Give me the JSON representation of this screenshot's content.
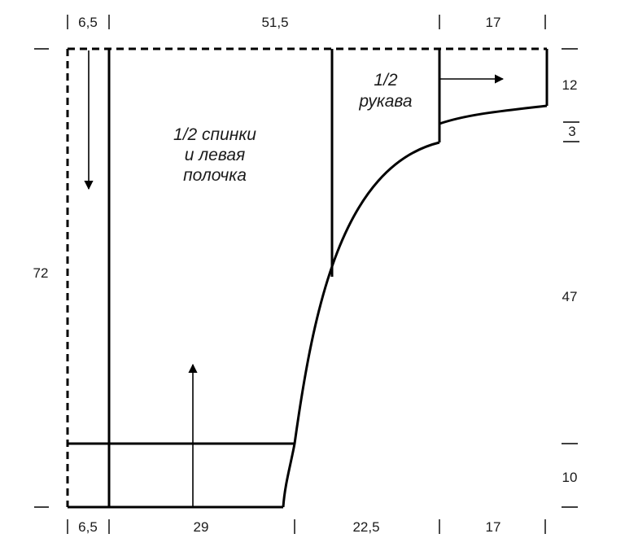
{
  "labels": {
    "body_line1": "1/2 спинки",
    "body_line2": "и левая",
    "body_line3": "полочка",
    "sleeve_line1": "1/2",
    "sleeve_line2": "рукава"
  },
  "dimensions": {
    "top": [
      "6,5",
      "51,5",
      "17"
    ],
    "bottom": [
      "6,5",
      "29",
      "22,5",
      "17"
    ],
    "left": "72",
    "right": [
      "12",
      "3",
      "47",
      "10"
    ]
  }
}
